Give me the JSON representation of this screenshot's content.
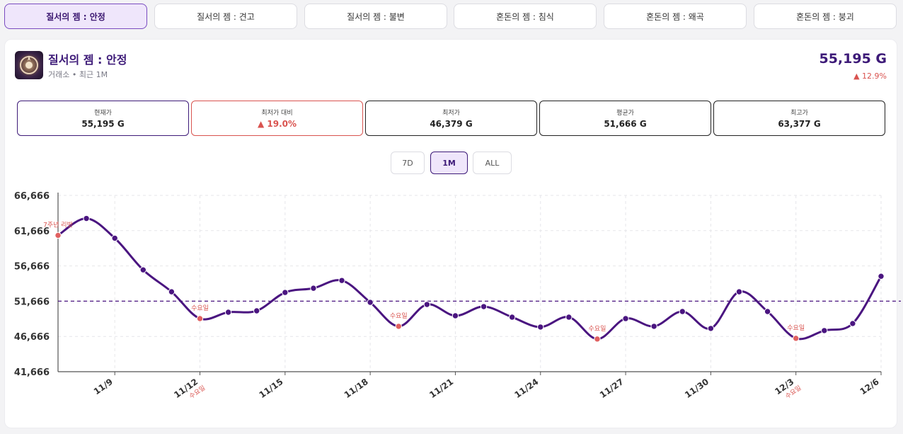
{
  "tabs": [
    {
      "label": "질서의 젬 : 안정",
      "active": true
    },
    {
      "label": "질서의 젬 : 견고",
      "active": false
    },
    {
      "label": "질서의 젬 : 불변",
      "active": false
    },
    {
      "label": "혼돈의 젬 : 침식",
      "active": false
    },
    {
      "label": "혼돈의 젬 : 왜곡",
      "active": false
    },
    {
      "label": "혼돈의 젬 : 붕괴",
      "active": false
    }
  ],
  "item": {
    "title": "질서의 젬 : 안정",
    "subtitle": "거래소 • 최근 1M",
    "price": "55,195 G",
    "change": "▲ 12.9%"
  },
  "stats": [
    {
      "label": "현재가",
      "value": "55,195 G"
    },
    {
      "label": "최저가 대비",
      "value": "▲ 19.0%"
    },
    {
      "label": "최저가",
      "value": "46,379 G"
    },
    {
      "label": "평균가",
      "value": "51,666 G"
    },
    {
      "label": "최고가",
      "value": "63,377 G"
    }
  ],
  "ranges": [
    "7D",
    "1M",
    "ALL"
  ],
  "active_range": "1M",
  "colors": {
    "accent": "#3d1a78",
    "line": "#4a1580",
    "marker_red": "#e06060",
    "up_red": "#d9534f"
  },
  "chart_data": {
    "type": "line",
    "x": [
      "11/7",
      "11/8",
      "11/9",
      "11/10",
      "11/11",
      "11/12",
      "11/13",
      "11/14",
      "11/15",
      "11/16",
      "11/17",
      "11/18",
      "11/19",
      "11/20",
      "11/21",
      "11/22",
      "11/23",
      "11/24",
      "11/25",
      "11/26",
      "11/27",
      "11/28",
      "11/29",
      "11/30",
      "12/1",
      "12/2",
      "12/3",
      "12/4",
      "12/5",
      "12/6"
    ],
    "values": [
      61000,
      63400,
      60600,
      56100,
      53000,
      49200,
      50100,
      50300,
      52900,
      53500,
      54600,
      51500,
      48100,
      51200,
      49600,
      50900,
      49400,
      48000,
      49400,
      46300,
      49200,
      48100,
      50200,
      47800,
      53000,
      50200,
      46400,
      47500,
      48500,
      55200
    ],
    "events": [
      {
        "x": "11/7",
        "label": "7주년 리밧"
      },
      {
        "x": "11/12",
        "label": "수요일"
      },
      {
        "x": "11/19",
        "label": "수요일"
      },
      {
        "x": "11/26",
        "label": "수요일"
      },
      {
        "x": "12/3",
        "label": "수요일"
      }
    ],
    "xticks": [
      "11/9",
      "11/12",
      "11/15",
      "11/18",
      "11/21",
      "11/24",
      "11/27",
      "11/30",
      "12/3",
      "12/6"
    ],
    "xtick_sublabels": {
      "11/12": "수요일",
      "12/3": "수요일"
    },
    "yticks": [
      "41,666",
      "46,666",
      "51,666",
      "56,666",
      "61,666",
      "66,666"
    ],
    "ylim": [
      41666,
      66666
    ],
    "average": 51666,
    "title": "",
    "xlabel": "",
    "ylabel": "",
    "grid": true
  }
}
